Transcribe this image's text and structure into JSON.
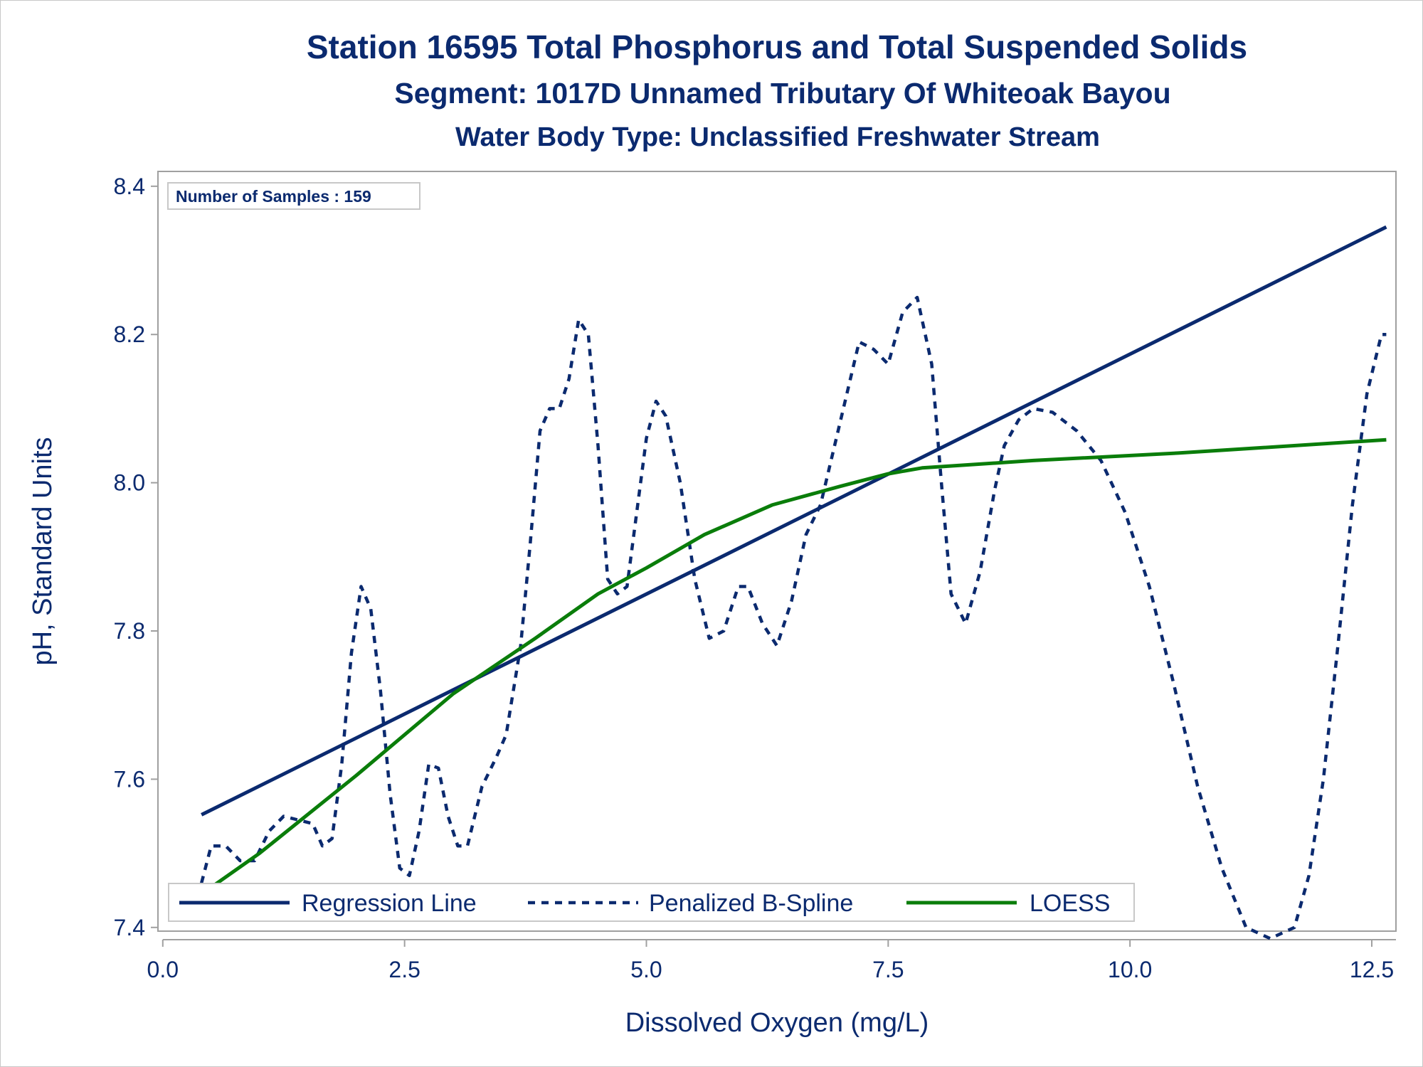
{
  "chart_data": {
    "type": "line",
    "title": "Station 16595  Total Phosphorus and Total Suspended Solids",
    "subtitle": "Segment: 1017D  Unnamed Tributary Of Whiteoak Bayou",
    "subtitle2": "Water Body Type: Unclassified Freshwater Stream",
    "xlabel": "Dissolved Oxygen (mg/L)",
    "ylabel": "pH, Standard Units",
    "xlim": [
      -0.05,
      12.75
    ],
    "ylim": [
      7.395,
      8.42
    ],
    "xticks": [
      "0.0",
      "2.5",
      "5.0",
      "7.5",
      "10.0",
      "12.5"
    ],
    "xtick_values": [
      0,
      2.5,
      5,
      7.5,
      10,
      12.5
    ],
    "yticks": [
      "7.4",
      "7.6",
      "7.8",
      "8.0",
      "8.2",
      "8.4"
    ],
    "ytick_values": [
      7.4,
      7.6,
      7.8,
      8.0,
      8.2,
      8.4
    ],
    "grid": false,
    "legend_position": "bottom-left",
    "annotation": "Number of Samples : 159",
    "series": [
      {
        "name": "Regression Line",
        "style": "solid",
        "color": "#0b2a6f",
        "x": [
          0.4,
          12.65
        ],
        "y": [
          7.552,
          8.345
        ]
      },
      {
        "name": "Penalized B-Spline",
        "style": "dashed",
        "color": "#0b2a6f",
        "x": [
          0.4,
          0.5,
          0.65,
          0.8,
          0.95,
          1.1,
          1.25,
          1.4,
          1.55,
          1.65,
          1.75,
          1.85,
          1.95,
          2.05,
          2.15,
          2.25,
          2.35,
          2.45,
          2.55,
          2.65,
          2.75,
          2.85,
          2.95,
          3.05,
          3.15,
          3.3,
          3.45,
          3.55,
          3.7,
          3.8,
          3.9,
          4.0,
          4.1,
          4.2,
          4.3,
          4.4,
          4.5,
          4.6,
          4.7,
          4.8,
          4.9,
          5.0,
          5.1,
          5.2,
          5.35,
          5.5,
          5.65,
          5.8,
          5.95,
          6.05,
          6.2,
          6.35,
          6.5,
          6.65,
          6.8,
          7.0,
          7.2,
          7.35,
          7.5,
          7.65,
          7.8,
          7.95,
          8.05,
          8.15,
          8.3,
          8.45,
          8.6,
          8.7,
          8.85,
          9.0,
          9.2,
          9.45,
          9.7,
          9.95,
          10.2,
          10.45,
          10.7,
          10.95,
          11.2,
          11.45,
          11.7,
          11.85,
          12.0,
          12.15,
          12.3,
          12.45,
          12.6,
          12.65
        ],
        "y": [
          7.46,
          7.51,
          7.51,
          7.49,
          7.49,
          7.53,
          7.55,
          7.545,
          7.54,
          7.51,
          7.52,
          7.62,
          7.77,
          7.86,
          7.83,
          7.72,
          7.58,
          7.48,
          7.47,
          7.53,
          7.62,
          7.615,
          7.55,
          7.51,
          7.51,
          7.59,
          7.63,
          7.66,
          7.78,
          7.92,
          8.07,
          8.1,
          8.1,
          8.14,
          8.22,
          8.2,
          8.05,
          7.87,
          7.85,
          7.86,
          7.96,
          8.06,
          8.11,
          8.09,
          8.0,
          7.87,
          7.79,
          7.8,
          7.86,
          7.86,
          7.81,
          7.78,
          7.84,
          7.93,
          7.97,
          8.08,
          8.19,
          8.18,
          8.16,
          8.23,
          8.25,
          8.16,
          8.0,
          7.85,
          7.81,
          7.88,
          7.99,
          8.05,
          8.085,
          8.1,
          8.095,
          8.07,
          8.03,
          7.96,
          7.86,
          7.73,
          7.59,
          7.48,
          7.4,
          7.385,
          7.4,
          7.47,
          7.6,
          7.78,
          7.97,
          8.12,
          8.2,
          8.2
        ]
      },
      {
        "name": "LOESS",
        "style": "solid",
        "color": "#0a7d0a",
        "x": [
          0.4,
          1.0,
          2.0,
          3.0,
          3.85,
          4.5,
          5.0,
          5.6,
          6.3,
          7.0,
          7.5,
          7.85,
          9.0,
          10.5,
          12.65
        ],
        "y": [
          7.445,
          7.5,
          7.605,
          7.715,
          7.79,
          7.85,
          7.885,
          7.93,
          7.97,
          7.995,
          8.012,
          8.02,
          8.03,
          8.04,
          8.058
        ]
      }
    ]
  }
}
